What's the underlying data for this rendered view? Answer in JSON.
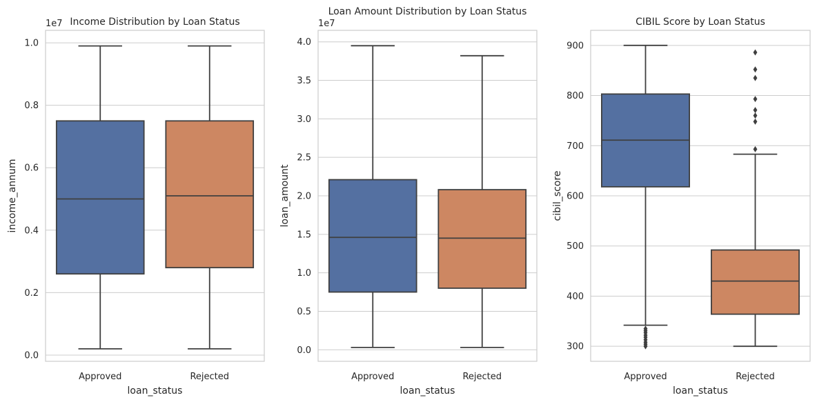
{
  "chart_data": [
    {
      "type": "box",
      "title": "Income Distribution by Loan Status",
      "xlabel": "loan_status",
      "ylabel": "income_annum",
      "y_offset_label": "1e7",
      "ylim": [
        -0.02,
        1.04
      ],
      "yticks": [
        0.0,
        0.2,
        0.4,
        0.6,
        0.8,
        1.0
      ],
      "ytick_labels": [
        "0.0",
        "0.2",
        "0.4",
        "0.6",
        "0.8",
        "1.0"
      ],
      "grid": true,
      "categories": [
        "Approved",
        "Rejected"
      ],
      "boxes": [
        {
          "category": "Approved",
          "color": "#5470a1",
          "whisker_low": 0.02,
          "q1": 0.26,
          "median": 0.5,
          "q3": 0.75,
          "whisker_high": 0.99,
          "outliers": []
        },
        {
          "category": "Rejected",
          "color": "#cd8762",
          "whisker_low": 0.02,
          "q1": 0.28,
          "median": 0.51,
          "q3": 0.75,
          "whisker_high": 0.99,
          "outliers": []
        }
      ]
    },
    {
      "type": "box",
      "title": "Loan Amount Distribution by Loan Status",
      "xlabel": "loan_status",
      "ylabel": "loan_amount",
      "y_offset_label": "1e7",
      "ylim": [
        -0.15,
        4.15
      ],
      "yticks": [
        0.0,
        0.5,
        1.0,
        1.5,
        2.0,
        2.5,
        3.0,
        3.5,
        4.0
      ],
      "ytick_labels": [
        "0.0",
        "0.5",
        "1.0",
        "1.5",
        "2.0",
        "2.5",
        "3.0",
        "3.5",
        "4.0"
      ],
      "grid": true,
      "categories": [
        "Approved",
        "Rejected"
      ],
      "boxes": [
        {
          "category": "Approved",
          "color": "#5470a1",
          "whisker_low": 0.03,
          "q1": 0.75,
          "median": 1.46,
          "q3": 2.21,
          "whisker_high": 3.95,
          "outliers": []
        },
        {
          "category": "Rejected",
          "color": "#cd8762",
          "whisker_low": 0.03,
          "q1": 0.8,
          "median": 1.45,
          "q3": 2.08,
          "whisker_high": 3.82,
          "outliers": []
        }
      ]
    },
    {
      "type": "box",
      "title": "CIBIL Score by Loan Status",
      "xlabel": "loan_status",
      "ylabel": "cibil_score",
      "y_offset_label": "",
      "ylim": [
        270,
        930
      ],
      "yticks": [
        300,
        400,
        500,
        600,
        700,
        800,
        900
      ],
      "ytick_labels": [
        "300",
        "400",
        "500",
        "600",
        "700",
        "800",
        "900"
      ],
      "grid": true,
      "categories": [
        "Approved",
        "Rejected"
      ],
      "boxes": [
        {
          "category": "Approved",
          "color": "#5470a1",
          "whisker_low": 342,
          "q1": 618,
          "median": 711,
          "q3": 803,
          "whisker_high": 900,
          "outliers": [
            300,
            304,
            308,
            313,
            318,
            322,
            327,
            331,
            335
          ]
        },
        {
          "category": "Rejected",
          "color": "#cd8762",
          "whisker_low": 300,
          "q1": 364,
          "median": 430,
          "q3": 492,
          "whisker_high": 683,
          "outliers": [
            693,
            748,
            760,
            771,
            793,
            835,
            852,
            886
          ]
        }
      ]
    }
  ]
}
